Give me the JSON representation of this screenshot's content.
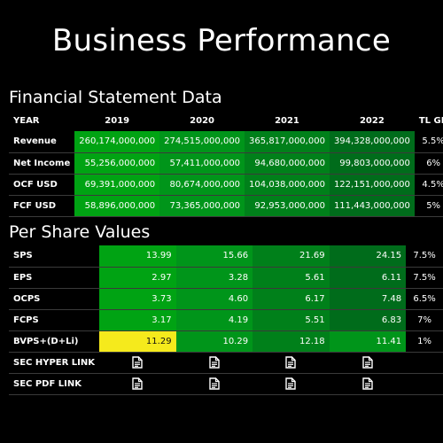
{
  "title": "Business Performance",
  "financial": {
    "title": "Financial Statement Data",
    "headers": [
      "YEAR",
      "2019",
      "2020",
      "2021",
      "2022",
      "TL GR"
    ],
    "rows": [
      {
        "label": "Revenue",
        "values": [
          "260,174,000,000",
          "274,515,000,000",
          "365,817,000,000",
          "394,328,000,000"
        ],
        "growth": "5.5%"
      },
      {
        "label": "Net Income",
        "values": [
          "55,256,000,000",
          "57,411,000,000",
          "94,680,000,000",
          "99,803,000,000"
        ],
        "growth": "6%"
      },
      {
        "label": "OCF USD",
        "values": [
          "69,391,000,000",
          "80,674,000,000",
          "104,038,000,000",
          "122,151,000,000"
        ],
        "growth": "4.5%"
      },
      {
        "label": "FCF USD",
        "values": [
          "58,896,000,000",
          "73,365,000,000",
          "92,953,000,000",
          "111,443,000,000"
        ],
        "growth": "5%"
      }
    ],
    "cell_colors": [
      [
        "#00a313",
        "#00951a",
        "#00801a",
        "#006c1b"
      ],
      [
        "#00a313",
        "#00951a",
        "#00801a",
        "#006c1b"
      ],
      [
        "#00a313",
        "#00951a",
        "#00801a",
        "#006c1b"
      ],
      [
        "#00a313",
        "#00951a",
        "#00801a",
        "#006c1b"
      ]
    ]
  },
  "per_share": {
    "title": "Per Share Values",
    "rows": [
      {
        "label": "SPS",
        "values": [
          "13.99",
          "15.66",
          "21.69",
          "24.15"
        ],
        "growth": "7.5%"
      },
      {
        "label": "EPS",
        "values": [
          "2.97",
          "3.28",
          "5.61",
          "6.11"
        ],
        "growth": "7.5%"
      },
      {
        "label": "OCPS",
        "values": [
          "3.73",
          "4.60",
          "6.17",
          "7.48"
        ],
        "growth": "6.5%"
      },
      {
        "label": "FCPS",
        "values": [
          "3.17",
          "4.19",
          "5.51",
          "6.83"
        ],
        "growth": "7%"
      },
      {
        "label": "BVPS+(D+Li)",
        "values": [
          "11.29",
          "10.29",
          "12.18",
          "11.41"
        ],
        "growth": "1%"
      }
    ],
    "cell_colors": [
      [
        "#00a313",
        "#00951a",
        "#00801a",
        "#006c1b"
      ],
      [
        "#00a313",
        "#00951a",
        "#00801a",
        "#006c1b"
      ],
      [
        "#00a313",
        "#00951a",
        "#00801a",
        "#006c1b"
      ],
      [
        "#00a313",
        "#00951a",
        "#00801a",
        "#006c1b"
      ],
      [
        "#f5ea1c",
        "#00951a",
        "#00801a",
        "#00951a"
      ]
    ],
    "link_rows": [
      {
        "label": "SEC HYPER LINK",
        "icon": "document-icon"
      },
      {
        "label": "SEC PDF LINK",
        "icon": "document-icon"
      }
    ]
  }
}
